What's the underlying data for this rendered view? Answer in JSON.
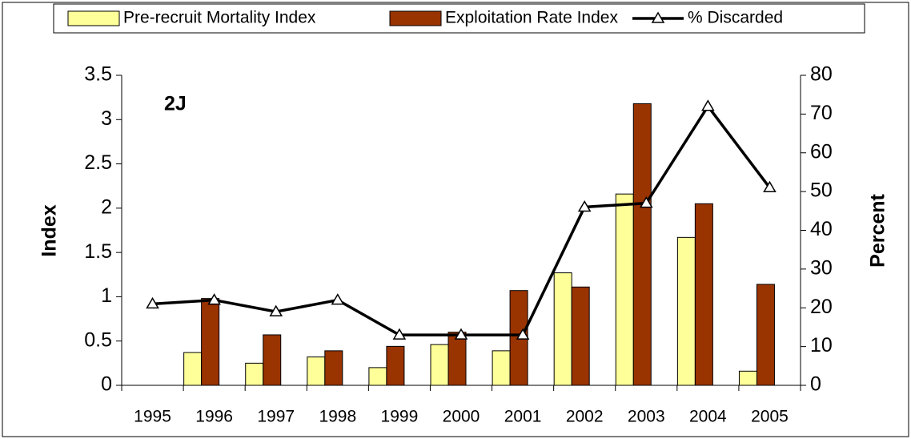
{
  "chart_data": {
    "type": "bar_line",
    "annotation": "2J",
    "categories": [
      "1995",
      "1996",
      "1997",
      "1998",
      "1999",
      "2000",
      "2001",
      "2002",
      "2003",
      "2004",
      "2005"
    ],
    "series": [
      {
        "name": "Pre-recruit Mortality Index",
        "type": "bar",
        "color": "#ffff99",
        "values": [
          null,
          0.37,
          0.25,
          0.32,
          0.2,
          0.46,
          0.39,
          1.27,
          2.16,
          1.67,
          0.16
        ]
      },
      {
        "name": "Exploitation Rate Index",
        "type": "bar",
        "color": "#993300",
        "values": [
          null,
          0.98,
          0.57,
          0.39,
          0.44,
          0.6,
          1.07,
          1.11,
          3.18,
          2.05,
          1.14
        ]
      },
      {
        "name": "% Discarded",
        "type": "line",
        "axis": "y2",
        "color": "#000000",
        "values": [
          21,
          22,
          19,
          22,
          13,
          13,
          13,
          46,
          47,
          72,
          51
        ]
      }
    ],
    "ylabel": "Index",
    "y2label": "Percent",
    "ylim": [
      0,
      3.5
    ],
    "yticks": [
      0,
      0.5,
      1,
      1.5,
      2,
      2.5,
      3,
      3.5
    ],
    "y2lim": [
      0,
      80
    ],
    "y2ticks": [
      0,
      10,
      20,
      30,
      40,
      50,
      60,
      70,
      80
    ],
    "grid": false
  }
}
